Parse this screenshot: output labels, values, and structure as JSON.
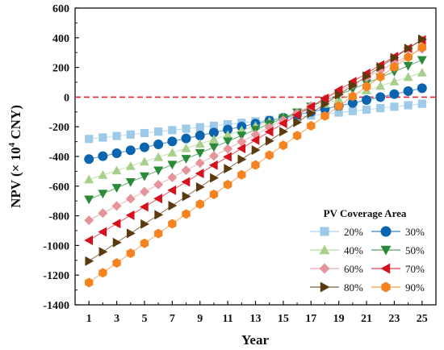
{
  "chart_data": {
    "type": "line",
    "xlabel": "Year",
    "ylabel_main": "NPV (× 10",
    "ylabel_exp": "4",
    "ylabel_unit": " CNY)",
    "xlim": [
      0,
      26
    ],
    "ylim": [
      -1400,
      600
    ],
    "x_ticks": [
      1,
      3,
      5,
      7,
      9,
      11,
      13,
      15,
      17,
      19,
      21,
      23,
      25
    ],
    "x_tick_labels": [
      "1",
      "3",
      "5",
      "7",
      "9",
      "11",
      "13",
      "15",
      "17",
      "19",
      "21",
      "23",
      "25"
    ],
    "y_ticks": [
      -1400,
      -1200,
      -1000,
      -800,
      -600,
      -400,
      -200,
      0,
      200,
      400,
      600
    ],
    "y_tick_labels": [
      "-1400",
      "-1200",
      "-1000",
      "-800",
      "-600",
      "-400",
      "-200",
      "0",
      "200",
      "400",
      "600"
    ],
    "reference_line": {
      "y": 0,
      "color": "#e8262b",
      "style": "dashed"
    },
    "legend": {
      "title": "PV Coverage Area",
      "position": "bottom-right",
      "columns": 2
    },
    "x": [
      1,
      2,
      3,
      4,
      5,
      6,
      7,
      8,
      9,
      10,
      11,
      12,
      13,
      14,
      15,
      16,
      17,
      18,
      19,
      20,
      21,
      22,
      23,
      24,
      25
    ],
    "series": [
      {
        "name": "20%",
        "color": "#9ccae8",
        "marker": "square",
        "start": -282,
        "end": -45
      },
      {
        "name": "30%",
        "color": "#0a64ae",
        "marker": "circle",
        "start": -418,
        "end": 60
      },
      {
        "name": "40%",
        "color": "#a8d08d",
        "marker": "triangle-up",
        "start": -555,
        "end": 165
      },
      {
        "name": "50%",
        "color": "#2a8a3a",
        "marker": "triangle-down",
        "start": -690,
        "end": 250
      },
      {
        "name": "60%",
        "color": "#e59499",
        "marker": "diamond",
        "start": -830,
        "end": 325
      },
      {
        "name": "70%",
        "color": "#d4111d",
        "marker": "triangle-left",
        "start": -965,
        "end": 385
      },
      {
        "name": "80%",
        "color": "#5b3a0f",
        "marker": "triangle-right",
        "start": -1105,
        "end": 390
      },
      {
        "name": "90%",
        "color": "#f5831f",
        "marker": "hexagon",
        "start": -1250,
        "end": 335
      }
    ]
  }
}
